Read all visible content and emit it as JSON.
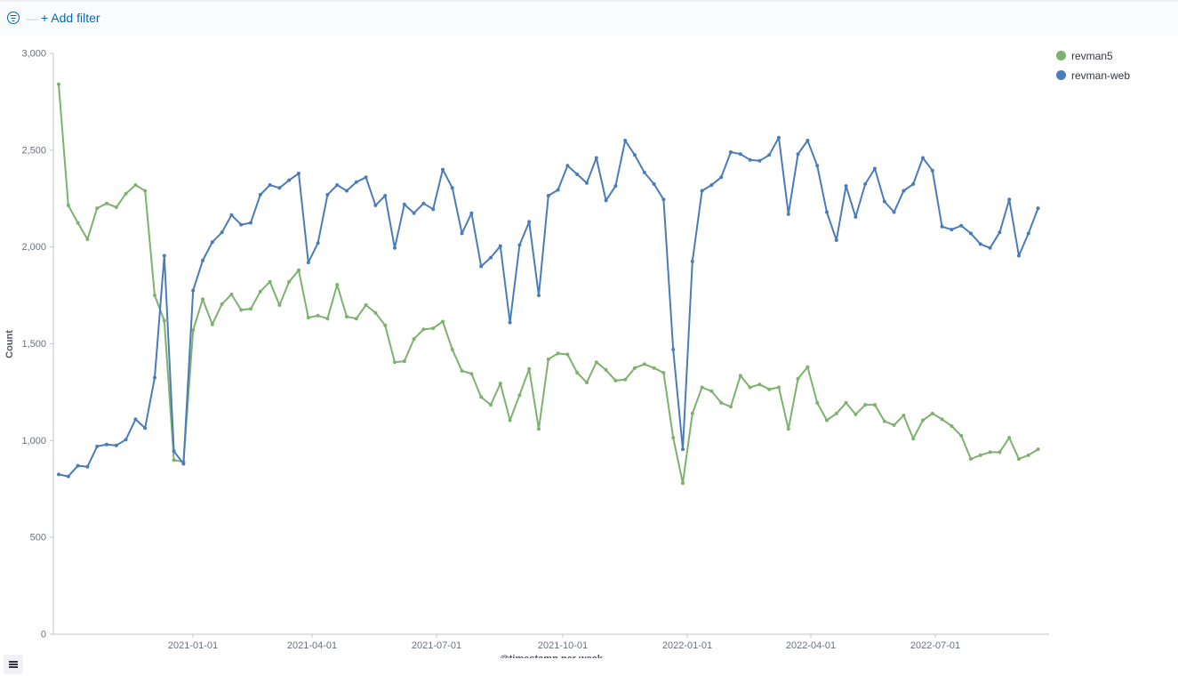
{
  "filter_bar": {
    "add_filter_label": "+ Add filter"
  },
  "colors": {
    "revman5": "#7cb26e",
    "revman_web": "#4a7cba",
    "axis": "#c2c6cf",
    "text": "#69707d",
    "accent": "#006bb4"
  },
  "icons": {
    "filter": "filter-circle-icon",
    "legend_toggle": "list-icon"
  },
  "chart_data": {
    "type": "line",
    "ylabel": "Count",
    "xlabel": "@timestamp per week",
    "ylim": [
      0,
      3000
    ],
    "y_ticks": [
      "0",
      "500",
      "1,000",
      "1,500",
      "2,000",
      "2,500",
      "3,000"
    ],
    "x_ticks": [
      "2021-01-01",
      "2021-04-01",
      "2021-07-01",
      "2021-10-01",
      "2022-01-01",
      "2022-04-01",
      "2022-07-01"
    ],
    "legend_position": "top-right",
    "grid": false,
    "series": [
      {
        "name": "revman5",
        "values": [
          2840,
          2215,
          2125,
          2040,
          2200,
          2225,
          2205,
          2275,
          2320,
          2290,
          1750,
          1620,
          900,
          890,
          1570,
          1730,
          1600,
          1705,
          1755,
          1675,
          1680,
          1770,
          1820,
          1700,
          1820,
          1880,
          1635,
          1645,
          1630,
          1805,
          1640,
          1630,
          1700,
          1660,
          1595,
          1405,
          1410,
          1525,
          1575,
          1580,
          1615,
          1470,
          1360,
          1345,
          1225,
          1185,
          1295,
          1105,
          1235,
          1370,
          1060,
          1420,
          1450,
          1445,
          1350,
          1300,
          1405,
          1365,
          1310,
          1315,
          1375,
          1395,
          1375,
          1350,
          1015,
          780,
          1140,
          1275,
          1255,
          1195,
          1175,
          1335,
          1275,
          1290,
          1265,
          1275,
          1060,
          1320,
          1380,
          1195,
          1105,
          1140,
          1195,
          1135,
          1185,
          1185,
          1100,
          1080,
          1130,
          1010,
          1105,
          1140,
          1110,
          1075,
          1025,
          905,
          925,
          940,
          940,
          1015,
          905,
          925,
          955
        ]
      },
      {
        "name": "revman-web",
        "values": [
          825,
          815,
          870,
          865,
          970,
          980,
          975,
          1005,
          1110,
          1065,
          1325,
          1955,
          945,
          880,
          1775,
          1930,
          2025,
          2075,
          2165,
          2115,
          2125,
          2270,
          2320,
          2305,
          2345,
          2380,
          1920,
          2020,
          2270,
          2320,
          2290,
          2335,
          2360,
          2215,
          2265,
          1995,
          2220,
          2175,
          2225,
          2195,
          2400,
          2305,
          2070,
          2175,
          1900,
          1945,
          2005,
          1610,
          2010,
          2130,
          1750,
          2265,
          2295,
          2420,
          2375,
          2330,
          2460,
          2240,
          2315,
          2550,
          2475,
          2385,
          2325,
          2245,
          1470,
          955,
          1925,
          2290,
          2320,
          2360,
          2490,
          2480,
          2450,
          2445,
          2475,
          2565,
          2170,
          2480,
          2550,
          2420,
          2180,
          2035,
          2315,
          2155,
          2325,
          2405,
          2235,
          2180,
          2290,
          2325,
          2460,
          2395,
          2105,
          2090,
          2110,
          2070,
          2015,
          1995,
          2075,
          2245,
          1955,
          2070,
          2200
        ]
      }
    ]
  }
}
